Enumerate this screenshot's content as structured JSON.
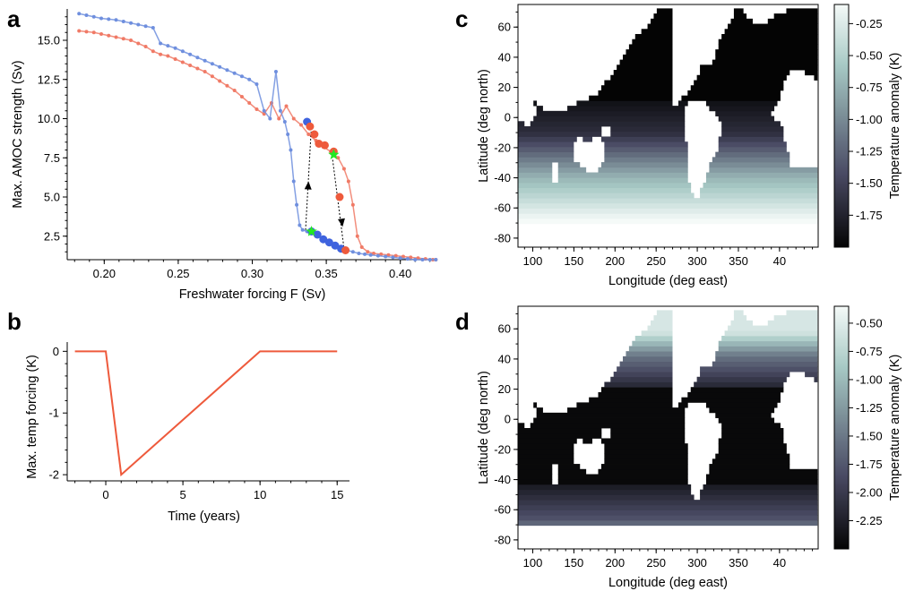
{
  "chart_data": [
    {
      "panel": "a",
      "type": "line",
      "xlabel": "Freshwater forcing F (Sv)",
      "ylabel": "Max. AMOC strength (Sv)",
      "xlim": [
        0.175,
        0.425
      ],
      "ylim": [
        1.0,
        17.0
      ],
      "xticks": [
        0.2,
        0.25,
        0.3,
        0.35,
        0.4
      ],
      "xtick_labels": [
        "0.20",
        "0.25",
        "0.30",
        "0.35",
        "0.40"
      ],
      "yticks": [
        2.5,
        5.0,
        7.5,
        10.0,
        12.5,
        15.0
      ],
      "ytick_labels": [
        "2.5",
        "5.0",
        "7.5",
        "10.0",
        "12.5",
        "15.0"
      ],
      "colors": {
        "blue": "#6f8fde",
        "red": "#f07a66",
        "blue_dot": "#3f63de",
        "red_dot": "#ee5a3c",
        "star": "#22e822"
      },
      "series": [
        {
          "x": [
            0.183,
            0.188,
            0.193,
            0.198,
            0.203,
            0.208,
            0.213,
            0.218,
            0.223,
            0.228,
            0.233,
            0.238,
            0.243,
            0.248,
            0.253,
            0.258,
            0.263,
            0.268,
            0.273,
            0.278,
            0.283,
            0.288,
            0.293,
            0.298,
            0.303,
            0.308,
            0.312,
            0.316,
            0.319,
            0.322,
            0.324,
            0.326,
            0.328,
            0.33,
            0.332,
            0.334,
            0.337,
            0.34,
            0.344,
            0.348,
            0.352,
            0.356,
            0.36,
            0.364,
            0.368,
            0.372,
            0.376,
            0.38,
            0.385,
            0.39,
            0.395,
            0.4,
            0.405,
            0.41,
            0.415,
            0.42,
            0.424
          ],
          "y": [
            16.7,
            16.6,
            16.5,
            16.4,
            16.35,
            16.3,
            16.2,
            16.1,
            16.0,
            15.9,
            15.8,
            14.8,
            14.65,
            14.5,
            14.3,
            14.1,
            13.9,
            13.7,
            13.5,
            13.3,
            13.1,
            12.9,
            12.7,
            12.5,
            12.2,
            10.5,
            10.0,
            13.0,
            10.5,
            9.8,
            9.0,
            8.0,
            6.0,
            4.5,
            3.2,
            2.9,
            2.8,
            2.7,
            2.5,
            2.3,
            2.1,
            1.9,
            1.75,
            1.6,
            1.5,
            1.4,
            1.35,
            1.3,
            1.25,
            1.2,
            1.15,
            1.1,
            1.05,
            1.0,
            1.0,
            1.0,
            1.0
          ]
        },
        {
          "x": [
            0.183,
            0.188,
            0.193,
            0.198,
            0.203,
            0.208,
            0.213,
            0.218,
            0.223,
            0.228,
            0.233,
            0.238,
            0.243,
            0.248,
            0.253,
            0.258,
            0.263,
            0.268,
            0.273,
            0.278,
            0.283,
            0.288,
            0.293,
            0.298,
            0.303,
            0.308,
            0.313,
            0.318,
            0.323,
            0.328,
            0.333,
            0.338,
            0.343,
            0.348,
            0.353,
            0.358,
            0.362,
            0.365,
            0.368,
            0.371,
            0.374,
            0.378,
            0.382,
            0.387,
            0.392,
            0.397,
            0.402,
            0.407,
            0.412,
            0.417,
            0.422,
            0.424
          ],
          "y": [
            15.6,
            15.55,
            15.5,
            15.4,
            15.3,
            15.2,
            15.1,
            15.0,
            14.8,
            14.6,
            14.3,
            14.1,
            14.0,
            13.8,
            13.6,
            13.4,
            13.2,
            13.0,
            12.7,
            12.4,
            12.1,
            11.8,
            11.4,
            11.0,
            10.6,
            10.3,
            11.0,
            10.0,
            10.8,
            10.0,
            9.6,
            9.0,
            8.6,
            8.2,
            7.9,
            7.5,
            6.8,
            6.0,
            4.5,
            2.5,
            1.8,
            1.5,
            1.4,
            1.35,
            1.3,
            1.25,
            1.2,
            1.15,
            1.1,
            1.05,
            1.0,
            1.0
          ]
        }
      ],
      "markers_blue": {
        "x": [
          0.337,
          0.34,
          0.344,
          0.348,
          0.352,
          0.356,
          0.36
        ],
        "y": [
          9.8,
          2.8,
          2.6,
          2.3,
          2.1,
          1.9,
          1.7
        ]
      },
      "markers_red": {
        "x": [
          0.339,
          0.342,
          0.345,
          0.349,
          0.355,
          0.359,
          0.363
        ],
        "y": [
          9.5,
          9.0,
          8.4,
          8.3,
          7.9,
          5.0,
          1.6
        ]
      },
      "stars": {
        "x": [
          0.34,
          0.355
        ],
        "y": [
          2.8,
          7.7
        ]
      },
      "arrows": [
        {
          "from": [
            0.336,
            2.9
          ],
          "to": [
            0.338,
            6.0
          ],
          "line_to": [
            0.34,
            9.6
          ]
        },
        {
          "from": [
            0.354,
            7.6
          ],
          "to": [
            0.361,
            3.1
          ],
          "line_to": [
            0.362,
            1.7
          ]
        }
      ]
    },
    {
      "panel": "b",
      "type": "line",
      "xlabel": "Time (years)",
      "ylabel": "Max. temp forcing (K)",
      "xlim": [
        -2.5,
        15.8
      ],
      "ylim": [
        -2.1,
        0.15
      ],
      "xticks": [
        0,
        5,
        10,
        15
      ],
      "xtick_labels": [
        "0",
        "5",
        "10",
        "15"
      ],
      "yticks": [
        0,
        -1,
        -2
      ],
      "ytick_labels": [
        "0",
        "-1",
        "-2"
      ],
      "series": [
        {
          "x": [
            -2,
            0,
            1,
            10,
            15
          ],
          "y": [
            0,
            0,
            -2,
            0,
            0
          ],
          "color": "#ee5a3c"
        }
      ]
    },
    {
      "panel": "c",
      "type": "heatmap",
      "xlabel": "Longitude (deg east)",
      "ylabel": "Latitude (deg north)",
      "colorbar_label": "Temperature anomaly (K)",
      "xtick_labels": [
        "100",
        "150",
        "200",
        "250",
        "300",
        "350",
        "40"
      ],
      "ytick_labels": [
        "60",
        "40",
        "20",
        "0",
        "-20",
        "-40",
        "-60",
        "-80"
      ],
      "colorbar_ticks": [
        "-0.25",
        "-0.50",
        "-0.75",
        "-1.00",
        "-1.25",
        "-1.50",
        "-1.75"
      ],
      "colorbar_range": [
        -2.0,
        -0.1
      ],
      "pattern": "cold_north_warm_south",
      "colors": {
        "light": "#f5faf8",
        "mid": "#a7c9c5",
        "dark": "#494a63",
        "black": "#040404"
      }
    },
    {
      "panel": "d",
      "type": "heatmap",
      "xlabel": "Longitude (deg east)",
      "ylabel": "Latitude (deg north)",
      "colorbar_label": "Temperature anomaly (K)",
      "xtick_labels": [
        "100",
        "150",
        "200",
        "250",
        "300",
        "350",
        "40"
      ],
      "ytick_labels": [
        "60",
        "40",
        "20",
        "0",
        "-20",
        "-40",
        "-60",
        "-80"
      ],
      "colorbar_ticks": [
        "-0.50",
        "-0.75",
        "-1.00",
        "-1.25",
        "-1.50",
        "-1.75",
        "-2.00",
        "-2.25"
      ],
      "colorbar_range": [
        -2.5,
        -0.35
      ],
      "pattern": "warm_poles_cold_tropics",
      "colors": {
        "light": "#f5faf8",
        "mid": "#a7c9c5",
        "dark": "#494a63",
        "black": "#040404"
      }
    }
  ]
}
